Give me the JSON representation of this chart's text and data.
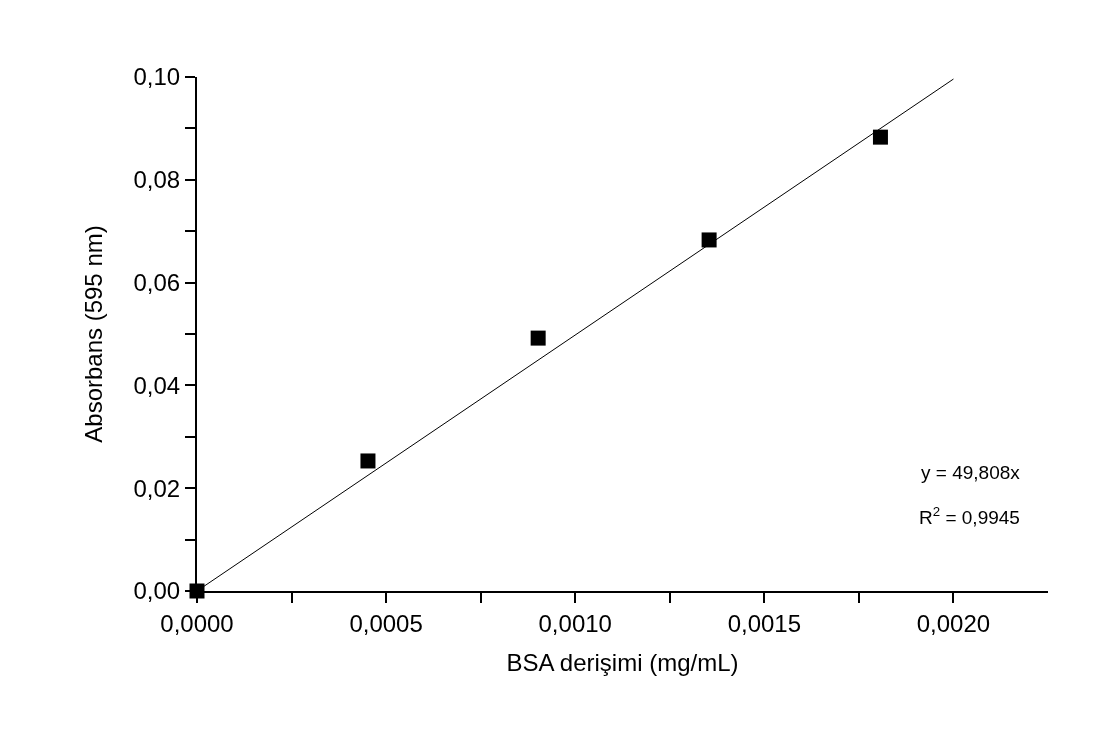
{
  "chart_data": {
    "type": "scatter",
    "xlabel": "BSA derişimi (mg/mL)",
    "ylabel": "Absorbans (595 nm)",
    "xlim": [
      0,
      0.00225
    ],
    "xticks": [
      {
        "value": 0,
        "label": "0,0000"
      },
      {
        "value": 0.00025,
        "label": null
      },
      {
        "value": 0.0005,
        "label": "0,0005"
      },
      {
        "value": 0.00075,
        "label": null
      },
      {
        "value": 0.001,
        "label": "0,0010"
      },
      {
        "value": 0.00125,
        "label": null
      },
      {
        "value": 0.0015,
        "label": "0,0015"
      },
      {
        "value": 0.00175,
        "label": null
      },
      {
        "value": 0.002,
        "label": "0,0020"
      }
    ],
    "ylim": [
      0,
      0.1
    ],
    "yticks": [
      {
        "value": 0,
        "label": "0,00"
      },
      {
        "value": 0.01,
        "label": null
      },
      {
        "value": 0.02,
        "label": "0,02"
      },
      {
        "value": 0.03,
        "label": null
      },
      {
        "value": 0.04,
        "label": "0,04"
      },
      {
        "value": 0.05,
        "label": null
      },
      {
        "value": 0.06,
        "label": "0,06"
      },
      {
        "value": 0.07,
        "label": null
      },
      {
        "value": 0.08,
        "label": "0,08"
      },
      {
        "value": 0.09,
        "label": null
      },
      {
        "value": 0.1,
        "label": "0,10"
      }
    ],
    "series": [
      {
        "marker": "square",
        "color": "#000000",
        "x": [
          0,
          0.000452,
          0.000902,
          0.001354,
          0.001807
        ],
        "values": [
          0,
          0.0253,
          0.0492,
          0.0683,
          0.0883
        ]
      },
      {
        "type": "line",
        "marker": "none",
        "line_style": "solid",
        "color": "#000000",
        "x": [
          0,
          0.002
        ],
        "values": [
          0,
          0.0996
        ]
      }
    ],
    "annotations": [
      "y = 49,808x",
      "R$^{2}$ = 0,9945"
    ]
  }
}
